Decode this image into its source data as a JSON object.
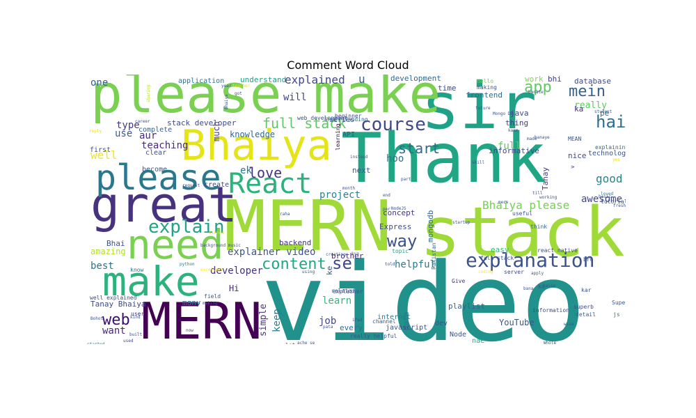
{
  "title": "Comment Word Cloud",
  "words": [
    {
      "text": "video",
      "color": "#21918c"
    },
    {
      "text": "Thank",
      "color": "#21a685"
    },
    {
      "text": "MERN",
      "color": "#a0da39"
    },
    {
      "text": "stack",
      "color": "#a0da39"
    },
    {
      "text": "sir",
      "color": "#1fa187"
    },
    {
      "text": "please make",
      "color": "#7ad151"
    },
    {
      "text": "Bhaiya",
      "color": "#e5e419"
    },
    {
      "text": "great",
      "color": "#46327e"
    },
    {
      "text": "MERN",
      "color": "#440154"
    },
    {
      "text": "need",
      "color": "#7ad151"
    },
    {
      "text": "make",
      "color": "#2db27d"
    },
    {
      "text": "please",
      "color": "#2a788e"
    },
    {
      "text": "React",
      "color": "#2db27d"
    },
    {
      "text": "explanation",
      "color": "#3b528b"
    },
    {
      "text": "course",
      "color": "#3e4a89"
    },
    {
      "text": "explain",
      "color": "#20a386"
    },
    {
      "text": "web",
      "color": "#3b0f70"
    },
    {
      "text": "hai",
      "color": "#2e6e8e"
    },
    {
      "text": "mein",
      "color": "#355f8d"
    },
    {
      "text": "app",
      "color": "#5ec962"
    },
    {
      "text": "love",
      "color": "#46327e"
    },
    {
      "text": "start",
      "color": "#31688e"
    },
    {
      "text": "way",
      "color": "#3b528b"
    },
    {
      "text": "content",
      "color": "#22a884"
    },
    {
      "text": "se",
      "color": "#3e4a89"
    },
    {
      "text": "full stack",
      "color": "#5ec962"
    },
    {
      "text": "Bhaiya please",
      "color": "#75d054"
    },
    {
      "text": "explained",
      "color": "#3f4788"
    },
    {
      "text": "helpful",
      "color": "#277f8e"
    },
    {
      "text": "explainer video",
      "color": "#3b528b"
    },
    {
      "text": "project",
      "color": "#26828e"
    },
    {
      "text": "good",
      "color": "#24868e"
    },
    {
      "text": "awesome",
      "color": "#3f4788"
    },
    {
      "text": "developer",
      "color": "#46327e"
    },
    {
      "text": "hoo",
      "color": "#2c728e"
    },
    {
      "text": "want",
      "color": "#482878"
    },
    {
      "text": "amazing",
      "color": "#b5de2b"
    },
    {
      "text": "best",
      "color": "#2c728e"
    },
    {
      "text": "aur",
      "color": "#472d7b"
    },
    {
      "text": "well",
      "color": "#f1e51d"
    },
    {
      "text": "teaching",
      "color": "#482878"
    },
    {
      "text": "type",
      "color": "#443983"
    },
    {
      "text": "use",
      "color": "#355f8d"
    },
    {
      "text": "one",
      "color": "#355f8d"
    },
    {
      "text": "knowledge",
      "color": "#31688e"
    },
    {
      "text": "much",
      "color": "#443983"
    },
    {
      "text": "stack developer",
      "color": "#3e4a89"
    },
    {
      "text": "understand",
      "color": "#1fa187"
    },
    {
      "text": "application",
      "color": "#2c728e"
    },
    {
      "text": "will",
      "color": "#404588"
    },
    {
      "text": "u",
      "color": "#355f8d"
    },
    {
      "text": "development",
      "color": "#31688e"
    },
    {
      "text": "work",
      "color": "#86d549"
    },
    {
      "text": "bhi",
      "color": "#453781"
    },
    {
      "text": "database",
      "color": "#3e4a89"
    },
    {
      "text": "really",
      "color": "#5ec962"
    },
    {
      "text": "ka",
      "color": "#482878"
    },
    {
      "text": "pe",
      "color": "#2c728e"
    },
    {
      "text": "full",
      "color": "#5ec962"
    },
    {
      "text": "ek",
      "color": "#2a788e"
    },
    {
      "text": "keep",
      "color": "#2a788e"
    },
    {
      "text": "learn",
      "color": "#35b779"
    },
    {
      "text": "job",
      "color": "#3f4788"
    },
    {
      "text": "brother",
      "color": "#482878"
    },
    {
      "text": "concept",
      "color": "#453781"
    },
    {
      "text": "Express",
      "color": "#3e4a89"
    },
    {
      "text": "backend",
      "color": "#46327e"
    },
    {
      "text": "Bhai",
      "color": "#3b528b"
    },
    {
      "text": "Hi",
      "color": "#472d7b"
    },
    {
      "text": "simple",
      "color": "#46327e"
    },
    {
      "text": "Tanay Bhaiya",
      "color": "#3e4a89"
    },
    {
      "text": "many",
      "color": "#2a788e"
    },
    {
      "text": "YouTube",
      "color": "#39568c"
    },
    {
      "text": "playlist",
      "color": "#355f8d"
    },
    {
      "text": "every",
      "color": "#2e6e8e"
    },
    {
      "text": "ke",
      "color": "#3b528b"
    },
    {
      "text": "next",
      "color": "#38588c"
    },
    {
      "text": "mongodb",
      "color": "#2e6e8e"
    },
    {
      "text": "easy",
      "color": "#32b67a"
    },
    {
      "text": "Tanay",
      "color": "#453781"
    },
    {
      "text": "thing",
      "color": "#443983"
    },
    {
      "text": "frontend",
      "color": "#31688e"
    },
    {
      "text": "time",
      "color": "#3e4a89"
    },
    {
      "text": "java",
      "color": "#3e4a89"
    },
    {
      "text": "informative",
      "color": "#3f4788"
    },
    {
      "text": "nice",
      "color": "#3f4788"
    },
    {
      "text": "technologies",
      "color": "#3b528b"
    },
    {
      "text": "series",
      "color": "#38588c"
    },
    {
      "text": "API",
      "color": "#39568c"
    },
    {
      "text": "complete",
      "color": "#355f8d"
    },
    {
      "text": "first",
      "color": "#39568c"
    },
    {
      "text": "clear",
      "color": "#3b528b"
    },
    {
      "text": "become",
      "color": "#39568c"
    },
    {
      "text": "create",
      "color": "#3e4a89"
    },
    {
      "text": "data",
      "color": "#2c728e"
    },
    {
      "text": "internet",
      "color": "#2a788e"
    },
    {
      "text": "javascript",
      "color": "#3b528b"
    },
    {
      "text": "dev",
      "color": "#3b528b"
    },
    {
      "text": "Node",
      "color": "#3b528b"
    },
    {
      "text": "nae",
      "color": "#22a884"
    },
    {
      "text": "server",
      "color": "#404588"
    },
    {
      "text": "Give",
      "color": "#46327e"
    },
    {
      "text": "ko",
      "color": "#3b528b"
    },
    {
      "text": "kar",
      "color": "#3b528b"
    },
    {
      "text": "js",
      "color": "#2a788e"
    },
    {
      "text": "bro",
      "color": "#3b528b"
    },
    {
      "text": "Super",
      "color": "#38588c"
    },
    {
      "text": "know",
      "color": "#2e6e8e"
    },
    {
      "text": "lot",
      "color": "#3b528b"
    },
    {
      "text": "related",
      "color": "#31688e"
    },
    {
      "text": "user",
      "color": "#46327e"
    },
    {
      "text": "field",
      "color": "#39568c"
    },
    {
      "text": "well explained",
      "color": "#3e4a89"
    },
    {
      "text": "learning",
      "color": "#440154"
    },
    {
      "text": "beginner",
      "color": "#3e4a89"
    },
    {
      "text": "tutorial",
      "color": "#38588c"
    },
    {
      "text": "MEAN",
      "color": "#3b528b"
    },
    {
      "text": "v",
      "color": "#453781"
    },
    {
      "text": "explaining",
      "color": "#31688e"
    },
    {
      "text": "Hello",
      "color": "#75d054"
    },
    {
      "text": "making",
      "color": "#3b528b"
    },
    {
      "text": "topic",
      "color": "#20a386"
    },
    {
      "text": "useful",
      "color": "#3b528b"
    },
    {
      "text": "think",
      "color": "#31688e"
    },
    {
      "text": "Pakistan",
      "color": "#2c728e"
    },
    {
      "text": "detail",
      "color": "#355f8d"
    },
    {
      "text": "superb",
      "color": "#3e4a89"
    },
    {
      "text": "channel",
      "color": "#355f8d"
    },
    {
      "text": "information",
      "color": "#3e4a89"
    },
    {
      "text": "really helpful",
      "color": "#3b528b"
    },
    {
      "text": "web development",
      "color": "#3b528b"
    },
    {
      "text": "Understanding",
      "color": "#31688e"
    },
    {
      "text": "explainer",
      "color": "#3b528b"
    },
    {
      "text": "react native",
      "color": "#3b528b"
    },
    {
      "text": "full stack",
      "color": "#3b528b"
    },
    {
      "text": "sharing",
      "color": "#b5de2b"
    },
    {
      "text": "reply",
      "color": "#e5e419"
    },
    {
      "text": "python",
      "color": "#2a788e"
    },
    {
      "text": "excellent",
      "color": "#fde725"
    },
    {
      "text": "keep making",
      "color": "#3b528b"
    },
    {
      "text": "background music",
      "color": "#3b528b"
    },
    {
      "text": "started",
      "color": "#2c728e"
    },
    {
      "text": "used",
      "color": "#3e4a89"
    },
    {
      "text": "built",
      "color": "#3e4a89"
    },
    {
      "text": "Bohot",
      "color": "#3b528b"
    },
    {
      "text": "kind",
      "color": "#3b528b"
    },
    {
      "text": "now",
      "color": "#3b528b"
    },
    {
      "text": "pata",
      "color": "#3b528b"
    },
    {
      "text": "ache se",
      "color": "#3b528b"
    },
    {
      "text": "creating",
      "color": "#3b528b"
    },
    {
      "text": "kya",
      "color": "#3b528b"
    },
    {
      "text": "told",
      "color": "#3b528b"
    },
    {
      "text": "using",
      "color": "#3b528b"
    },
    {
      "text": "coding",
      "color": "#fde725"
    },
    {
      "text": "startup",
      "color": "#3b528b"
    },
    {
      "text": "fresher",
      "color": "#3b528b"
    },
    {
      "text": "loved",
      "color": "#2a788e"
    },
    {
      "text": "student",
      "color": "#3b528b"
    },
    {
      "text": "alse",
      "color": "#3b528b"
    },
    {
      "text": "mere",
      "color": "#3b528b"
    },
    {
      "text": "end",
      "color": "#3b528b"
    },
    {
      "text": "per",
      "color": "#3b528b"
    },
    {
      "text": "part",
      "color": "#3b528b"
    },
    {
      "text": "month",
      "color": "#3b528b"
    },
    {
      "text": "instead",
      "color": "#3b528b"
    },
    {
      "text": "request",
      "color": "#3b528b"
    },
    {
      "text": "career",
      "color": "#3b528b"
    },
    {
      "text": "teacher",
      "color": "#e5e419"
    },
    {
      "text": "got",
      "color": "#3b528b"
    },
    {
      "text": "year",
      "color": "#3b528b"
    },
    {
      "text": "Mongo DB",
      "color": "#3b528b"
    },
    {
      "text": "kaam",
      "color": "#3b528b"
    },
    {
      "text": "future",
      "color": "#3b528b"
    },
    {
      "text": "banate",
      "color": "#3b528b"
    },
    {
      "text": "made",
      "color": "#3b528b"
    },
    {
      "text": "banaye",
      "color": "#3b528b"
    },
    {
      "text": "raha",
      "color": "#3b528b"
    },
    {
      "text": "sikhna",
      "color": "#e5e419"
    },
    {
      "text": "working",
      "color": "#3b528b"
    },
    {
      "text": "till",
      "color": "#3b528b"
    },
    {
      "text": "Bhaiya",
      "color": "#3b528b"
    },
    {
      "text": "bana",
      "color": "#3b528b"
    },
    {
      "text": "kaise",
      "color": "#3b528b"
    },
    {
      "text": "apply",
      "color": "#3b528b"
    },
    {
      "text": "skill",
      "color": "#3b528b"
    },
    {
      "text": "yes",
      "color": "#e5e419"
    },
    {
      "text": "iPad",
      "color": "#3b528b"
    },
    {
      "text": "NodeJS",
      "color": "#3b528b"
    },
    {
      "text": "Whole",
      "color": "#3b528b"
    },
    {
      "text": "wise",
      "color": "#3b528b"
    },
    {
      "text": "basic",
      "color": "#3b528b"
    }
  ]
}
